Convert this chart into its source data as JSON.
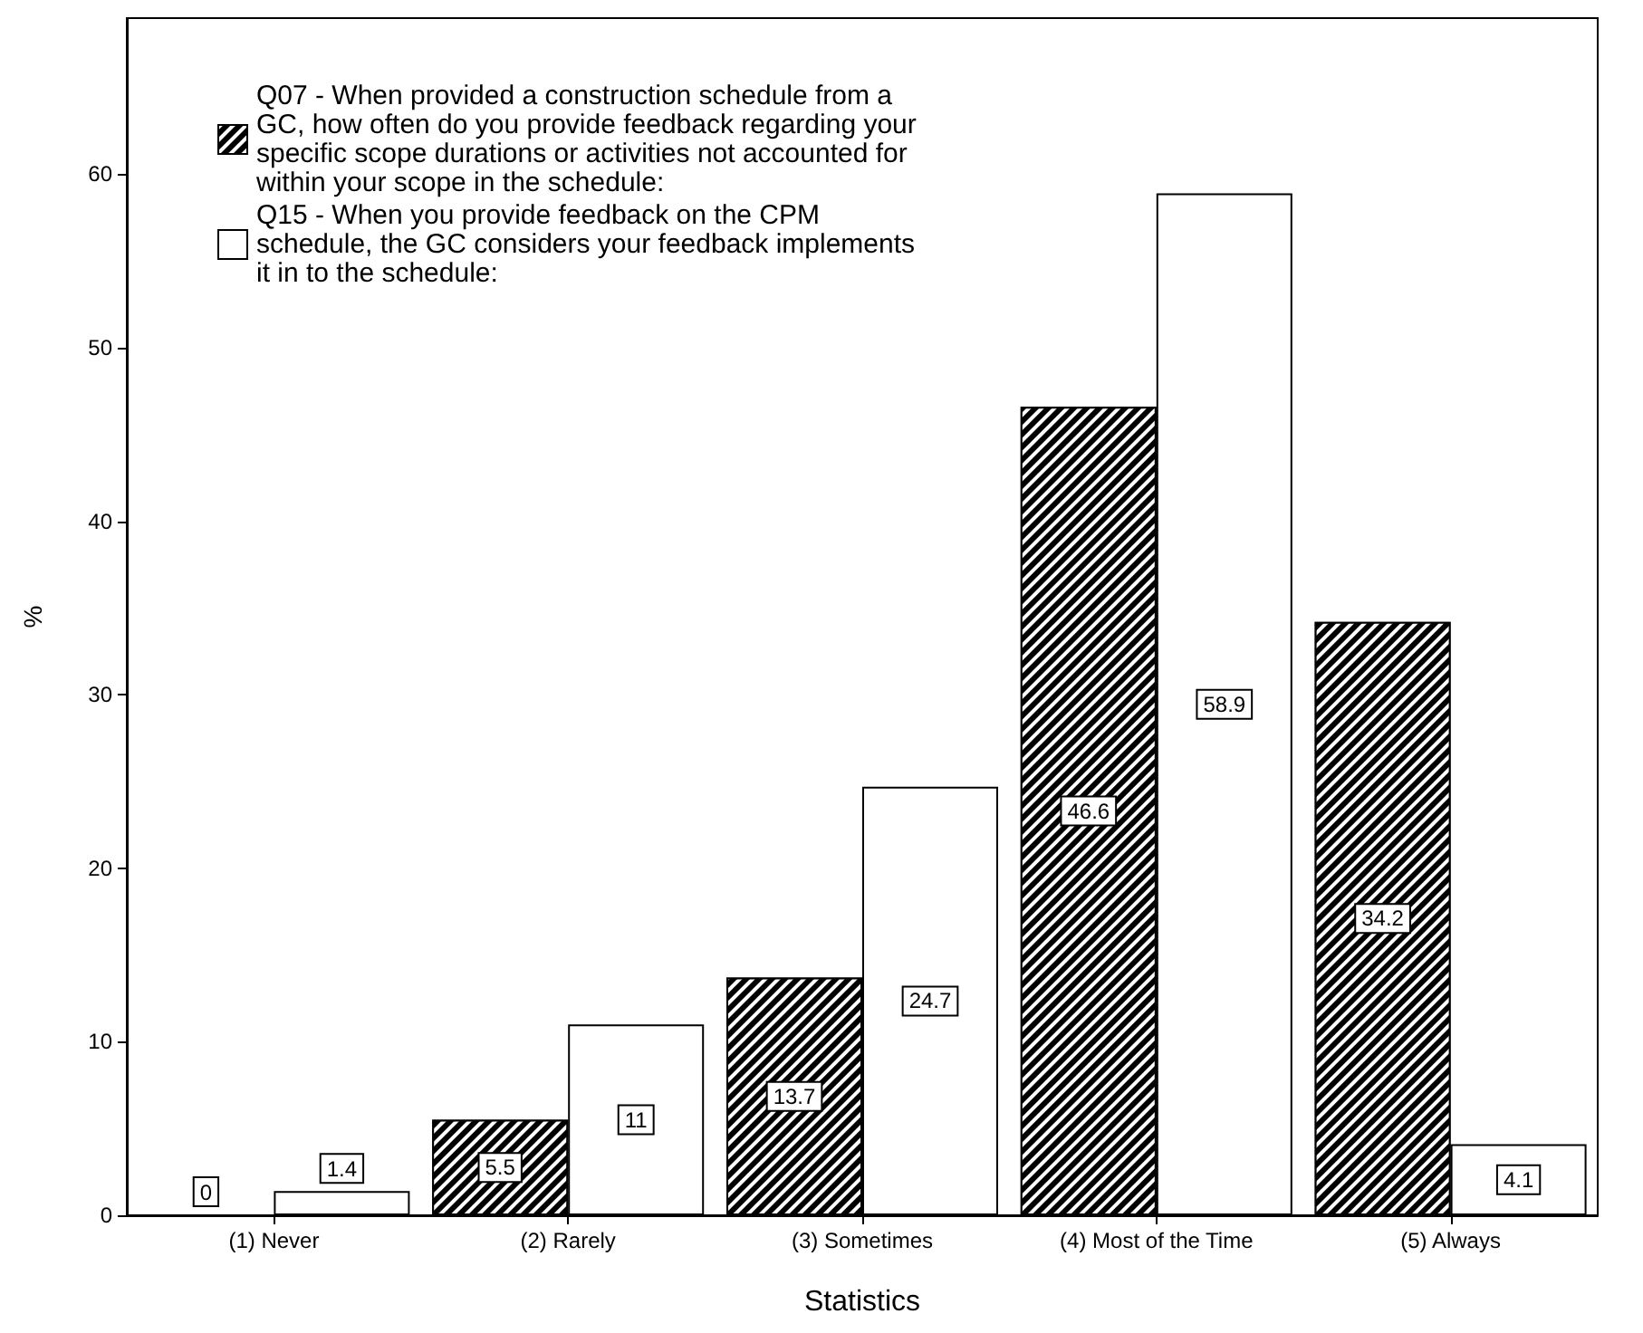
{
  "chart_data": {
    "type": "bar",
    "xlabel": "Statistics",
    "ylabel": "%",
    "categories": [
      "(1) Never",
      "(2) Rarely",
      "(3) Sometimes",
      "(4) Most of the Time",
      "(5) Always"
    ],
    "series": [
      {
        "name": "Q07 - When provided a construction schedule from a GC, how often do you provide feedback regarding your specific scope durations or activities not accounted for within your scope in the schedule:",
        "color": "#000000",
        "values": [
          0,
          5.5,
          13.7,
          46.6,
          34.2
        ]
      },
      {
        "name": "Q15 - When you provide feedback on the CPM schedule, the GC considers your feedback implements it in to the schedule:",
        "color": "#ffffff",
        "values": [
          1.4,
          11,
          24.7,
          58.9,
          4.1
        ]
      }
    ],
    "ylim": [
      0,
      69
    ],
    "yticks": [
      0,
      10,
      20,
      30,
      40,
      50,
      60
    ],
    "data_labels": true,
    "grid": false,
    "legend": "top left"
  }
}
